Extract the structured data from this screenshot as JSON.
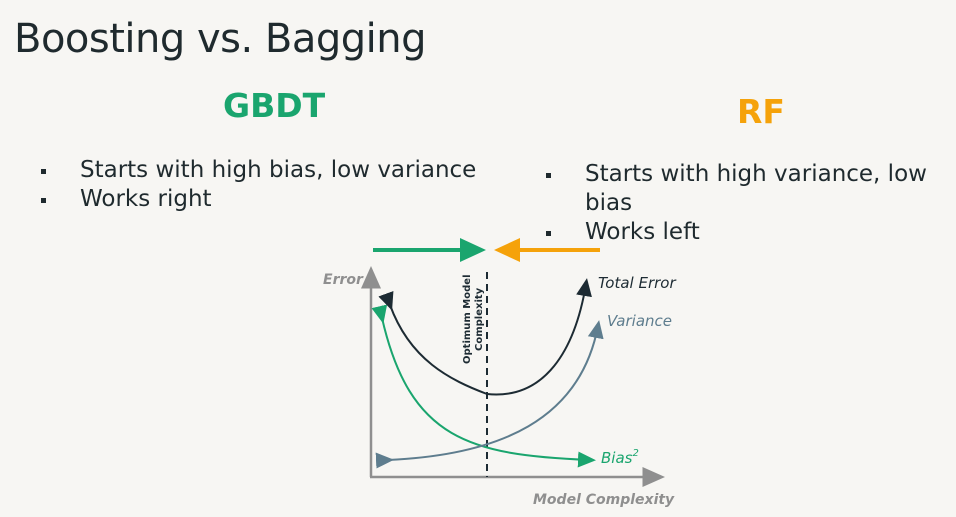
{
  "slide": {
    "title": "Boosting vs. Bagging"
  },
  "left_column": {
    "heading": "GBDT",
    "color": "#1aa56e",
    "bullets": [
      "Starts with high bias, low variance",
      "Works right"
    ]
  },
  "right_column": {
    "heading": "RF",
    "color": "#f5a20a",
    "bullets": [
      "Starts with high variance, low bias",
      "Works left"
    ]
  },
  "diagram": {
    "y_axis_label": "Error",
    "x_axis_label": "Model Complexity",
    "optimum_label_line1": "Optimum Model",
    "optimum_label_line2": "Complexity",
    "curves": {
      "total_error": {
        "label": "Total Error",
        "color": "#1d2b33"
      },
      "variance": {
        "label": "Variance",
        "color": "#5e7d8e"
      },
      "bias": {
        "label": "Bias",
        "superscript": "2",
        "color": "#1aa56e"
      }
    },
    "axis_color": "#8f8f8f"
  }
}
